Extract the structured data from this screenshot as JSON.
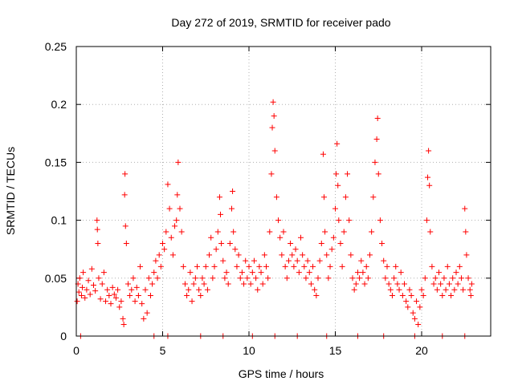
{
  "chart_data": {
    "type": "scatter",
    "title": "Day 272 of 2019, SRMTID for receiver pado",
    "xlabel": "GPS time / hours",
    "ylabel": "SRMTID / TECUs",
    "xlim": [
      0,
      24
    ],
    "ylim": [
      0,
      0.25
    ],
    "x_ticks": [
      0,
      5,
      10,
      15,
      20
    ],
    "x_tick_labels": [
      "0",
      "5",
      "10",
      "15",
      "20"
    ],
    "y_ticks": [
      0,
      0.05,
      0.1,
      0.15,
      0.2,
      0.25
    ],
    "y_tick_labels": [
      "0",
      "0.05",
      "0.1",
      "0.15",
      "0.2",
      "0.25"
    ],
    "grid": true,
    "marker": "plus",
    "series": [
      {
        "name": "SRMTID",
        "color": "#ff0000",
        "points": [
          [
            0.05,
            0.03
          ],
          [
            0.1,
            0.045
          ],
          [
            0.15,
            0.038
          ],
          [
            0.2,
            0.05
          ],
          [
            0.3,
            0.035
          ],
          [
            0.35,
            0.042
          ],
          [
            0.4,
            0.055
          ],
          [
            0.5,
            0.033
          ],
          [
            0.6,
            0.04
          ],
          [
            0.7,
            0.048
          ],
          [
            0.8,
            0.036
          ],
          [
            0.9,
            0.058
          ],
          [
            1.0,
            0.044
          ],
          [
            1.1,
            0.039
          ],
          [
            1.2,
            0.1
          ],
          [
            1.22,
            0.092
          ],
          [
            1.25,
            0.08
          ],
          [
            1.3,
            0.05
          ],
          [
            1.4,
            0.032
          ],
          [
            1.5,
            0.045
          ],
          [
            1.6,
            0.055
          ],
          [
            1.7,
            0.03
          ],
          [
            1.8,
            0.04
          ],
          [
            1.9,
            0.035
          ],
          [
            2.0,
            0.028
          ],
          [
            2.1,
            0.042
          ],
          [
            2.2,
            0.036
          ],
          [
            2.3,
            0.033
          ],
          [
            2.4,
            0.04
          ],
          [
            2.5,
            0.025
          ],
          [
            2.6,
            0.03
          ],
          [
            2.7,
            0.015
          ],
          [
            2.75,
            0.01
          ],
          [
            2.8,
            0.122
          ],
          [
            2.82,
            0.14
          ],
          [
            2.85,
            0.095
          ],
          [
            2.9,
            0.08
          ],
          [
            3.0,
            0.045
          ],
          [
            3.1,
            0.035
          ],
          [
            3.2,
            0.04
          ],
          [
            3.3,
            0.05
          ],
          [
            3.4,
            0.03
          ],
          [
            3.5,
            0.042
          ],
          [
            3.6,
            0.035
          ],
          [
            3.7,
            0.06
          ],
          [
            3.8,
            0.028
          ],
          [
            3.9,
            0.015
          ],
          [
            4.0,
            0.04
          ],
          [
            4.1,
            0.02
          ],
          [
            4.2,
            0.05
          ],
          [
            4.3,
            0.035
          ],
          [
            4.4,
            0.045
          ],
          [
            4.5,
            0.055
          ],
          [
            4.6,
            0.065
          ],
          [
            4.7,
            0.05
          ],
          [
            4.8,
            0.07
          ],
          [
            4.9,
            0.06
          ],
          [
            5.0,
            0.08
          ],
          [
            5.1,
            0.075
          ],
          [
            5.2,
            0.09
          ],
          [
            5.3,
            0.131
          ],
          [
            5.4,
            0.11
          ],
          [
            5.5,
            0.085
          ],
          [
            5.6,
            0.07
          ],
          [
            5.7,
            0.095
          ],
          [
            5.8,
            0.1
          ],
          [
            5.85,
            0.122
          ],
          [
            5.9,
            0.15
          ],
          [
            6.0,
            0.11
          ],
          [
            6.1,
            0.09
          ],
          [
            6.2,
            0.06
          ],
          [
            6.3,
            0.045
          ],
          [
            6.4,
            0.035
          ],
          [
            6.5,
            0.04
          ],
          [
            6.6,
            0.055
          ],
          [
            6.7,
            0.03
          ],
          [
            6.8,
            0.045
          ],
          [
            6.9,
            0.05
          ],
          [
            7.0,
            0.06
          ],
          [
            7.1,
            0.04
          ],
          [
            7.2,
            0.035
          ],
          [
            7.3,
            0.05
          ],
          [
            7.4,
            0.045
          ],
          [
            7.5,
            0.06
          ],
          [
            7.6,
            0.04
          ],
          [
            7.7,
            0.07
          ],
          [
            7.8,
            0.085
          ],
          [
            7.9,
            0.05
          ],
          [
            8.0,
            0.06
          ],
          [
            8.1,
            0.075
          ],
          [
            8.2,
            0.09
          ],
          [
            8.3,
            0.12
          ],
          [
            8.35,
            0.105
          ],
          [
            8.4,
            0.08
          ],
          [
            8.5,
            0.065
          ],
          [
            8.6,
            0.05
          ],
          [
            8.7,
            0.055
          ],
          [
            8.8,
            0.045
          ],
          [
            8.9,
            0.08
          ],
          [
            9.0,
            0.11
          ],
          [
            9.05,
            0.125
          ],
          [
            9.1,
            0.09
          ],
          [
            9.2,
            0.075
          ],
          [
            9.3,
            0.06
          ],
          [
            9.4,
            0.07
          ],
          [
            9.5,
            0.05
          ],
          [
            9.6,
            0.055
          ],
          [
            9.7,
            0.045
          ],
          [
            9.8,
            0.065
          ],
          [
            9.9,
            0.05
          ],
          [
            10.0,
            0.06
          ],
          [
            10.1,
            0.045
          ],
          [
            10.2,
            0.055
          ],
          [
            10.3,
            0.065
          ],
          [
            10.4,
            0.05
          ],
          [
            10.5,
            0.04
          ],
          [
            10.6,
            0.06
          ],
          [
            10.7,
            0.055
          ],
          [
            10.8,
            0.045
          ],
          [
            10.9,
            0.07
          ],
          [
            11.0,
            0.06
          ],
          [
            11.1,
            0.05
          ],
          [
            11.2,
            0.09
          ],
          [
            11.3,
            0.14
          ],
          [
            11.35,
            0.18
          ],
          [
            11.4,
            0.202
          ],
          [
            11.45,
            0.19
          ],
          [
            11.5,
            0.16
          ],
          [
            11.6,
            0.12
          ],
          [
            11.7,
            0.1
          ],
          [
            11.8,
            0.085
          ],
          [
            11.9,
            0.07
          ],
          [
            12.0,
            0.09
          ],
          [
            12.1,
            0.06
          ],
          [
            12.2,
            0.05
          ],
          [
            12.3,
            0.065
          ],
          [
            12.4,
            0.08
          ],
          [
            12.5,
            0.07
          ],
          [
            12.6,
            0.06
          ],
          [
            12.7,
            0.075
          ],
          [
            12.8,
            0.065
          ],
          [
            12.9,
            0.055
          ],
          [
            13.0,
            0.085
          ],
          [
            13.1,
            0.07
          ],
          [
            13.2,
            0.06
          ],
          [
            13.3,
            0.05
          ],
          [
            13.4,
            0.065
          ],
          [
            13.5,
            0.055
          ],
          [
            13.6,
            0.045
          ],
          [
            13.7,
            0.06
          ],
          [
            13.8,
            0.04
          ],
          [
            13.9,
            0.035
          ],
          [
            14.0,
            0.05
          ],
          [
            14.1,
            0.065
          ],
          [
            14.2,
            0.08
          ],
          [
            14.3,
            0.157
          ],
          [
            14.35,
            0.12
          ],
          [
            14.4,
            0.09
          ],
          [
            14.5,
            0.07
          ],
          [
            14.6,
            0.05
          ],
          [
            14.7,
            0.06
          ],
          [
            14.8,
            0.075
          ],
          [
            14.9,
            0.085
          ],
          [
            15.0,
            0.11
          ],
          [
            15.05,
            0.14
          ],
          [
            15.1,
            0.166
          ],
          [
            15.15,
            0.13
          ],
          [
            15.2,
            0.1
          ],
          [
            15.3,
            0.08
          ],
          [
            15.4,
            0.06
          ],
          [
            15.5,
            0.09
          ],
          [
            15.6,
            0.12
          ],
          [
            15.7,
            0.14
          ],
          [
            15.8,
            0.1
          ],
          [
            15.9,
            0.07
          ],
          [
            16.0,
            0.05
          ],
          [
            16.1,
            0.04
          ],
          [
            16.2,
            0.045
          ],
          [
            16.3,
            0.055
          ],
          [
            16.4,
            0.05
          ],
          [
            16.5,
            0.065
          ],
          [
            16.6,
            0.055
          ],
          [
            16.7,
            0.045
          ],
          [
            16.8,
            0.06
          ],
          [
            16.9,
            0.05
          ],
          [
            17.0,
            0.07
          ],
          [
            17.1,
            0.09
          ],
          [
            17.2,
            0.12
          ],
          [
            17.3,
            0.15
          ],
          [
            17.4,
            0.17
          ],
          [
            17.45,
            0.188
          ],
          [
            17.5,
            0.14
          ],
          [
            17.6,
            0.1
          ],
          [
            17.7,
            0.08
          ],
          [
            17.8,
            0.065
          ],
          [
            17.9,
            0.05
          ],
          [
            18.0,
            0.06
          ],
          [
            18.1,
            0.045
          ],
          [
            18.2,
            0.04
          ],
          [
            18.3,
            0.035
          ],
          [
            18.4,
            0.05
          ],
          [
            18.5,
            0.06
          ],
          [
            18.6,
            0.045
          ],
          [
            18.7,
            0.04
          ],
          [
            18.8,
            0.055
          ],
          [
            18.9,
            0.035
          ],
          [
            19.0,
            0.045
          ],
          [
            19.1,
            0.03
          ],
          [
            19.2,
            0.025
          ],
          [
            19.3,
            0.04
          ],
          [
            19.4,
            0.035
          ],
          [
            19.5,
            0.02
          ],
          [
            19.6,
            0.015
          ],
          [
            19.7,
            0.03
          ],
          [
            19.8,
            0.01
          ],
          [
            19.9,
            0.025
          ],
          [
            20.0,
            0.04
          ],
          [
            20.1,
            0.035
          ],
          [
            20.2,
            0.05
          ],
          [
            20.3,
            0.1
          ],
          [
            20.35,
            0.137
          ],
          [
            20.4,
            0.16
          ],
          [
            20.45,
            0.13
          ],
          [
            20.5,
            0.09
          ],
          [
            20.6,
            0.06
          ],
          [
            20.7,
            0.045
          ],
          [
            20.8,
            0.05
          ],
          [
            20.9,
            0.04
          ],
          [
            21.0,
            0.055
          ],
          [
            21.1,
            0.045
          ],
          [
            21.2,
            0.035
          ],
          [
            21.3,
            0.05
          ],
          [
            21.4,
            0.04
          ],
          [
            21.5,
            0.06
          ],
          [
            21.6,
            0.045
          ],
          [
            21.7,
            0.035
          ],
          [
            21.8,
            0.05
          ],
          [
            21.9,
            0.04
          ],
          [
            22.0,
            0.055
          ],
          [
            22.1,
            0.045
          ],
          [
            22.2,
            0.06
          ],
          [
            22.3,
            0.05
          ],
          [
            22.4,
            0.04
          ],
          [
            22.5,
            0.11
          ],
          [
            22.55,
            0.09
          ],
          [
            22.6,
            0.07
          ],
          [
            22.7,
            0.05
          ],
          [
            22.8,
            0.04
          ],
          [
            22.85,
            0.035
          ],
          [
            22.9,
            0.045
          ],
          [
            0.25,
            0.0
          ],
          [
            4.5,
            0.0
          ],
          [
            5.3,
            0.0
          ],
          [
            7.2,
            0.0
          ],
          [
            8.5,
            0.0
          ],
          [
            10.2,
            0.0
          ],
          [
            11.5,
            0.0
          ],
          [
            12.8,
            0.0
          ],
          [
            14.5,
            0.0
          ],
          [
            16.3,
            0.0
          ],
          [
            17.8,
            0.0
          ],
          [
            19.6,
            0.0
          ],
          [
            21.2,
            0.0
          ],
          [
            22.5,
            0.0
          ]
        ]
      }
    ]
  }
}
